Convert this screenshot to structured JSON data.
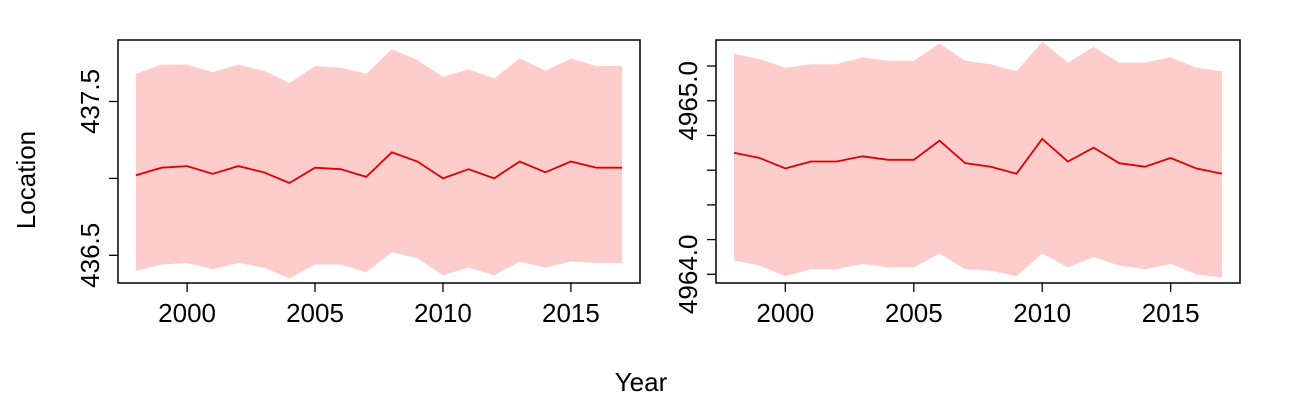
{
  "figure": {
    "shared_xlabel": "Year",
    "shared_ylabel": "Location"
  },
  "colors": {
    "band": "#ffcccc",
    "line": "#e00000",
    "frame": "#000000"
  },
  "chart_data": [
    {
      "type": "area",
      "xlabel": "Year",
      "ylabel": "Location",
      "xlim": [
        1997.3,
        2017.7
      ],
      "ylim": [
        436.32,
        437.9
      ],
      "xticks": [
        2000,
        2005,
        2010,
        2015
      ],
      "xtick_labels": [
        "2000",
        "2005",
        "2010",
        "2015"
      ],
      "yticks": [
        436.5,
        437.0,
        437.5
      ],
      "ytick_labels": [
        "436.5",
        "",
        "437.5"
      ],
      "grid": false,
      "x": [
        1998,
        1999,
        2000,
        2001,
        2002,
        2003,
        2004,
        2005,
        2006,
        2007,
        2008,
        2009,
        2010,
        2011,
        2012,
        2013,
        2014,
        2015,
        2016,
        2017
      ],
      "series": [
        {
          "role": "lower",
          "values": [
            436.4,
            436.44,
            436.45,
            436.41,
            436.45,
            436.42,
            436.35,
            436.44,
            436.44,
            436.39,
            436.52,
            436.48,
            436.37,
            436.42,
            436.37,
            436.46,
            436.42,
            436.46,
            436.45,
            436.45
          ]
        },
        {
          "role": "estimate",
          "values": [
            437.02,
            437.07,
            437.08,
            437.03,
            437.08,
            437.04,
            436.97,
            437.07,
            437.06,
            437.01,
            437.17,
            437.11,
            437.0,
            437.06,
            437.0,
            437.11,
            437.04,
            437.11,
            437.07,
            437.07
          ]
        },
        {
          "role": "upper",
          "values": [
            437.68,
            437.74,
            437.74,
            437.69,
            437.74,
            437.7,
            437.62,
            437.73,
            437.72,
            437.68,
            437.84,
            437.77,
            437.66,
            437.71,
            437.65,
            437.78,
            437.7,
            437.78,
            437.73,
            437.73
          ]
        }
      ]
    },
    {
      "type": "area",
      "xlabel": "Year",
      "ylabel": "Location",
      "xlim": [
        1997.3,
        2017.7
      ],
      "ylim": [
        4963.95,
        4965.35
      ],
      "xticks": [
        2000,
        2005,
        2010,
        2015
      ],
      "xtick_labels": [
        "2000",
        "2005",
        "2010",
        "2015"
      ],
      "yticks": [
        4964.0,
        4964.2,
        4964.4,
        4964.6,
        4964.8,
        4965.0,
        4965.2
      ],
      "ytick_labels": [
        "4964.0",
        "",
        "",
        "",
        "",
        "4965.0",
        ""
      ],
      "grid": false,
      "x": [
        1998,
        1999,
        2000,
        2001,
        2002,
        2003,
        2004,
        2005,
        2006,
        2007,
        2008,
        2009,
        2010,
        2011,
        2012,
        2013,
        2014,
        2015,
        2016,
        2017
      ],
      "series": [
        {
          "role": "lower",
          "values": [
            4964.08,
            4964.05,
            4963.99,
            4964.03,
            4964.03,
            4964.06,
            4964.04,
            4964.04,
            4964.12,
            4964.03,
            4964.02,
            4963.99,
            4964.12,
            4964.04,
            4964.1,
            4964.05,
            4964.03,
            4964.06,
            4964.0,
            4963.98
          ]
        },
        {
          "role": "estimate",
          "values": [
            4964.7,
            4964.67,
            4964.61,
            4964.65,
            4964.65,
            4964.68,
            4964.66,
            4964.66,
            4964.77,
            4964.64,
            4964.62,
            4964.58,
            4964.78,
            4964.65,
            4964.73,
            4964.64,
            4964.62,
            4964.67,
            4964.61,
            4964.58
          ]
        },
        {
          "role": "upper",
          "values": [
            4965.27,
            4965.24,
            4965.19,
            4965.21,
            4965.21,
            4965.25,
            4965.23,
            4965.23,
            4965.33,
            4965.23,
            4965.21,
            4965.17,
            4965.34,
            4965.22,
            4965.31,
            4965.22,
            4965.22,
            4965.25,
            4965.19,
            4965.17
          ]
        }
      ]
    }
  ]
}
